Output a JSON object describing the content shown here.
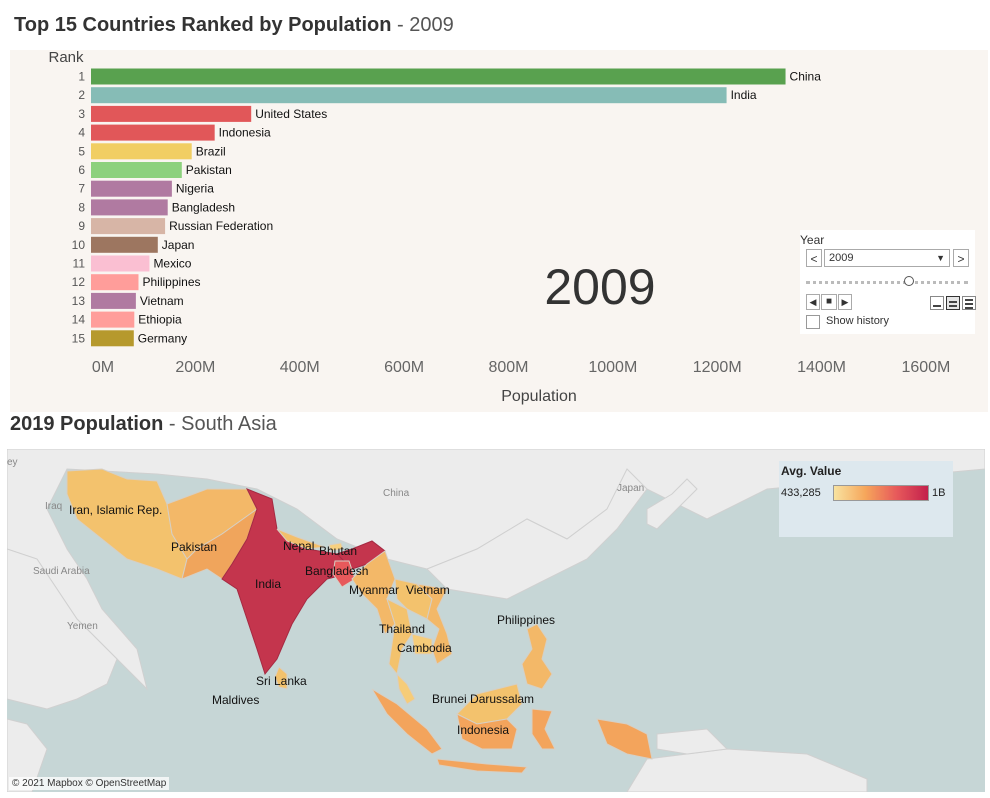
{
  "top_title": {
    "main": "Top 15 Countries Ranked by Population",
    "sep": " - ",
    "year": "2009"
  },
  "map_title": {
    "main": "2019 Population",
    "sep": " - ",
    "region": "South Asia"
  },
  "big_year": "2009",
  "year_control": {
    "label": "Year",
    "selected": "2009",
    "prev": "<",
    "next": ">",
    "show_history": "Show history",
    "slider_position": 0.63
  },
  "colors": {
    "China": "#59a14f",
    "India": "#86bcb6",
    "United States": "#e15759",
    "Indonesia": "#e15759",
    "Brazil": "#f1ce63",
    "Pakistan": "#8cd17d",
    "Nigeria": "#b07aa1",
    "Bangladesh": "#b07aa1",
    "Russian Federation": "#d7b5a6",
    "Japan": "#9d7660",
    "Mexico": "#fabfd2",
    "Philippines": "#ff9d9a",
    "Vietnam": "#b07aa1",
    "Ethiopia": "#ff9d9a",
    "Germany": "#b6992d"
  },
  "chart_data": {
    "type": "bar",
    "orientation": "horizontal",
    "title": "Top 15 Countries Ranked by Population - 2009",
    "ylabel": "Rank",
    "xlabel": "Population",
    "ranks": [
      "1",
      "2",
      "3",
      "4",
      "5",
      "6",
      "7",
      "8",
      "9",
      "10",
      "11",
      "12",
      "13",
      "14",
      "15"
    ],
    "categories": [
      "China",
      "India",
      "United States",
      "Indonesia",
      "Brazil",
      "Pakistan",
      "Nigeria",
      "Bangladesh",
      "Russian Federation",
      "Japan",
      "Mexico",
      "Philippines",
      "Vietnam",
      "Ethiopia",
      "Germany"
    ],
    "values": [
      1331000000,
      1218000000,
      307000000,
      237000000,
      193000000,
      174000000,
      155000000,
      147000000,
      142000000,
      128000000,
      112000000,
      91000000,
      86000000,
      83000000,
      82000000
    ],
    "xlim": [
      0,
      1650000000
    ],
    "xticks": [
      "0M",
      "200M",
      "400M",
      "600M",
      "800M",
      "1000M",
      "1200M",
      "1400M",
      "1600M"
    ],
    "xtick_values": [
      0,
      200000000,
      400000000,
      600000000,
      800000000,
      1000000000,
      1200000000,
      1400000000,
      1600000000
    ]
  },
  "map": {
    "legend_title": "Avg. Value",
    "legend_min": "433,285",
    "legend_max": "1B",
    "attribution": "© 2021 Mapbox © OpenStreetMap",
    "background_labels": [
      "ey",
      "Iraq",
      "Saudi Arabia",
      "Yemen",
      "China",
      "Japan"
    ],
    "country_labels": [
      "Iran, Islamic Rep.",
      "Pakistan",
      "Nepal",
      "Bhutan",
      "Bangladesh",
      "India",
      "Myanmar",
      "Vietnam",
      "Thailand",
      "Cambodia",
      "Philippines",
      "Sri Lanka",
      "Maldives",
      "Brunei Darussalam",
      "Indonesia"
    ]
  }
}
